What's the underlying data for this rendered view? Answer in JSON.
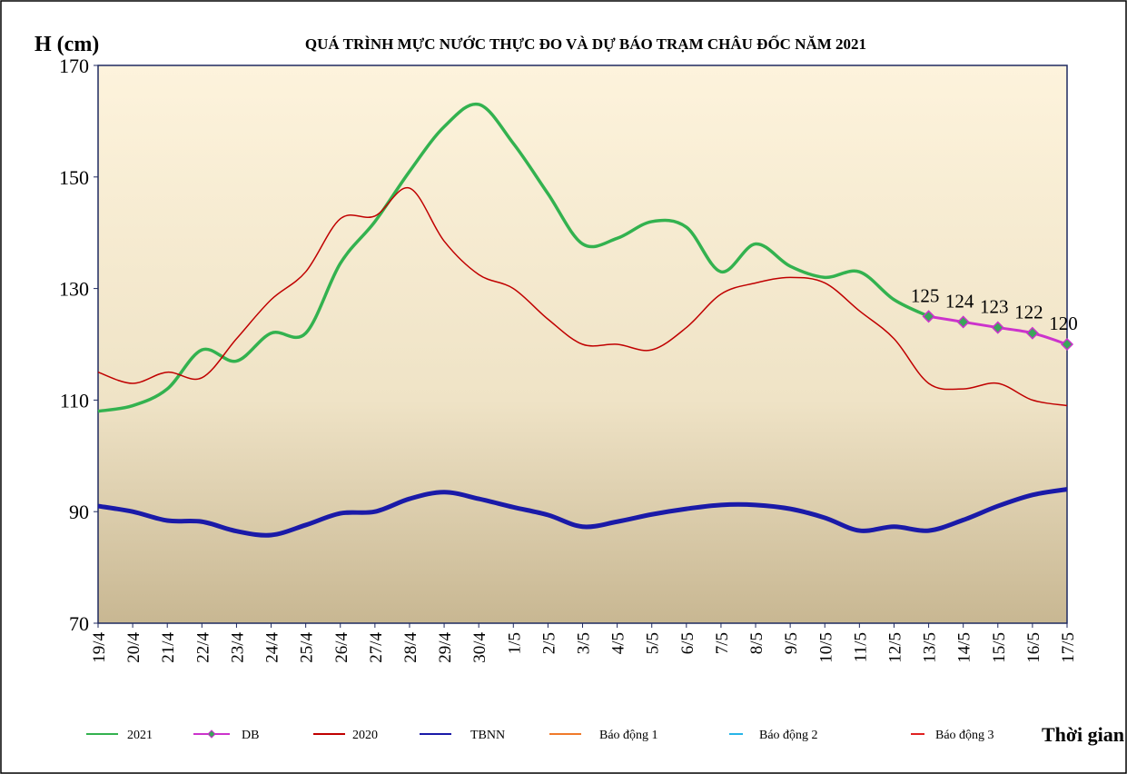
{
  "chart_data": {
    "type": "line",
    "title": "QUÁ TRÌNH MỰC NƯỚC THỰC ĐO VÀ DỰ BÁO TRẠM CHÂU ĐỐC NĂM  2021",
    "y_label": "H (cm)",
    "x_label": "Thời gian",
    "categories": [
      "19/4",
      "20/4",
      "21/4",
      "22/4",
      "23/4",
      "24/4",
      "25/4",
      "26/4",
      "27/4",
      "28/4",
      "29/4",
      "30/4",
      "1/5",
      "2/5",
      "3/5",
      "4/5",
      "5/5",
      "6/5",
      "7/5",
      "8/5",
      "9/5",
      "10/5",
      "11/5",
      "12/5",
      "13/5",
      "14/5",
      "15/5",
      "16/5",
      "17/5"
    ],
    "ylim": [
      70,
      170
    ],
    "yticks": [
      70,
      90,
      110,
      130,
      150,
      170
    ],
    "series": [
      {
        "name": "2021",
        "color": "#33b24f",
        "values": [
          108,
          109,
          112,
          119,
          117,
          122,
          122,
          134.5,
          142,
          151,
          159,
          163,
          156,
          147,
          138,
          139,
          142,
          141,
          133,
          138,
          134,
          132,
          133,
          128,
          125,
          null,
          null,
          null,
          null
        ]
      },
      {
        "name": "DB",
        "color": "#cc33cc",
        "marker_color": "#3aa65a",
        "values": [
          null,
          null,
          null,
          null,
          null,
          null,
          null,
          null,
          null,
          null,
          null,
          null,
          null,
          null,
          null,
          null,
          null,
          null,
          null,
          null,
          null,
          null,
          null,
          null,
          125,
          124,
          123,
          122,
          120
        ]
      },
      {
        "name": "2020",
        "color": "#c00000",
        "values": [
          115,
          113,
          115,
          114,
          121,
          128,
          133,
          142.5,
          143,
          148,
          138.5,
          132.5,
          130,
          124.5,
          120,
          120,
          119,
          123,
          129,
          131,
          132,
          131,
          126,
          121,
          113,
          112,
          113,
          110,
          109
        ]
      },
      {
        "name": "TBNN",
        "color": "#1a1aa8",
        "values": [
          91,
          90,
          88.4,
          88.2,
          86.5,
          85.8,
          87.6,
          89.7,
          90,
          92.3,
          93.5,
          92.3,
          90.8,
          89.4,
          87.3,
          88.2,
          89.5,
          90.5,
          91.2,
          91.2,
          90.5,
          88.9,
          86.6,
          87.3,
          86.6,
          88.5,
          91,
          93,
          94
        ]
      },
      {
        "name": "Báo động 1",
        "color": "#f07a2a"
      },
      {
        "name": "Báo động 2",
        "color": "#27b5e8"
      },
      {
        "name": "Báo động 3",
        "color": "#e02020"
      }
    ]
  }
}
